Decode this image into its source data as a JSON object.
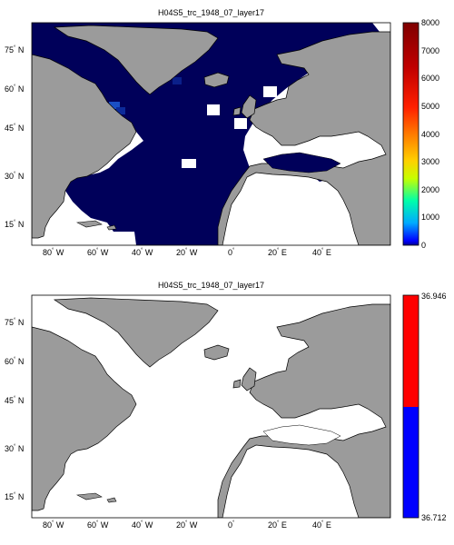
{
  "panels": [
    {
      "title": "H04S5_trc_1948_07_layer17",
      "colorbar": {
        "type": "continuous",
        "colormap": "jet",
        "ticks": [
          "0",
          "1000",
          "2000",
          "3000",
          "4000",
          "5000",
          "6000",
          "7000",
          "8000"
        ]
      },
      "xticks": [
        {
          "num": "80",
          "dir": "W"
        },
        {
          "num": "60",
          "dir": "W"
        },
        {
          "num": "40",
          "dir": "W"
        },
        {
          "num": "20",
          "dir": "W"
        },
        {
          "num": "0",
          "dir": ""
        },
        {
          "num": "20",
          "dir": "E"
        },
        {
          "num": "40",
          "dir": "E"
        }
      ],
      "yticks": [
        {
          "num": "75",
          "dir": "N"
        },
        {
          "num": "60",
          "dir": "N"
        },
        {
          "num": "45",
          "dir": "N"
        },
        {
          "num": "30",
          "dir": "N"
        },
        {
          "num": "15",
          "dir": "N"
        }
      ],
      "colors": {
        "land": "#9b9b9b",
        "ocean_data": "#00005a",
        "highlight": "#1a4fc4",
        "no_data": "#ffffff"
      }
    },
    {
      "title": "H04S5_trc_1948_07_layer17",
      "colorbar": {
        "type": "two-tone",
        "top_label": "36.946",
        "bottom_label": "36.712",
        "top_color": "#ff0000",
        "bottom_color": "#0000ff"
      },
      "xticks": [
        {
          "num": "80",
          "dir": "W"
        },
        {
          "num": "60",
          "dir": "W"
        },
        {
          "num": "40",
          "dir": "W"
        },
        {
          "num": "20",
          "dir": "W"
        },
        {
          "num": "0",
          "dir": ""
        },
        {
          "num": "20",
          "dir": "E"
        },
        {
          "num": "40",
          "dir": "E"
        }
      ],
      "yticks": [
        {
          "num": "75",
          "dir": "N"
        },
        {
          "num": "60",
          "dir": "N"
        },
        {
          "num": "45",
          "dir": "N"
        },
        {
          "num": "30",
          "dir": "N"
        },
        {
          "num": "15",
          "dir": "N"
        }
      ],
      "colors": {
        "land": "#9b9b9b",
        "ocean": "#ffffff"
      }
    }
  ]
}
